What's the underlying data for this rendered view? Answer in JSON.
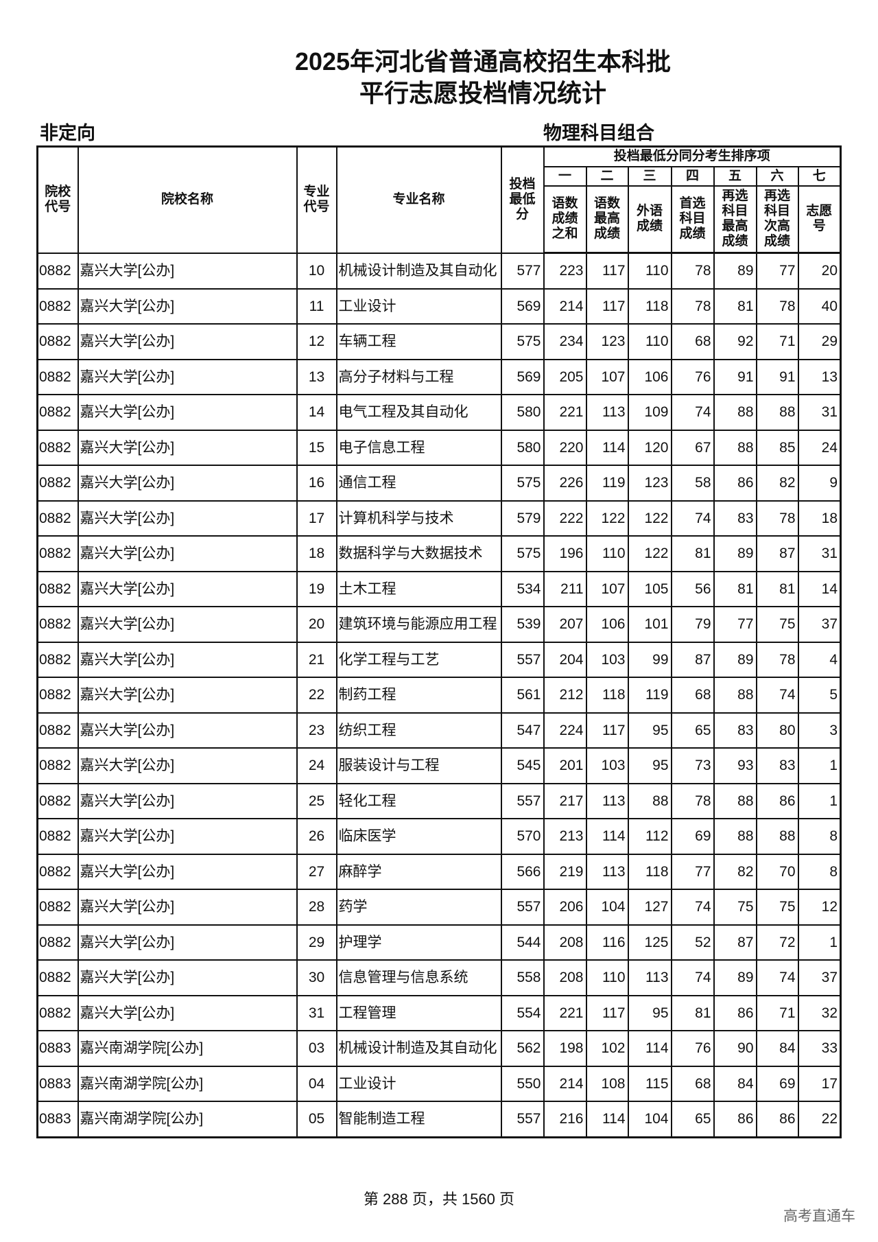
{
  "title_line1": "2025年河北省普通高校招生本科批",
  "title_line2": "平行志愿投档情况统计",
  "category_left": "非定向",
  "category_right": "物理科目组合",
  "headers": {
    "school_code": "院校代号",
    "school_name": "院校名称",
    "major_code": "专业代号",
    "major_name": "专业名称",
    "min_score": "投档最低分",
    "tiebreak_group": "投档最低分同分考生排序项",
    "ranks": [
      "一",
      "二",
      "三",
      "四",
      "五",
      "六",
      "七"
    ],
    "tiebreaks": [
      "语数成绩之和",
      "语数最高成绩",
      "外语成绩",
      "首选科目成绩",
      "再选科目最高成绩",
      "再选科目次高成绩",
      "志愿号"
    ]
  },
  "rows": [
    [
      "0882",
      "嘉兴大学[公办]",
      "10",
      "机械设计制造及其自动化",
      "577",
      "223",
      "117",
      "110",
      "78",
      "89",
      "77",
      "20"
    ],
    [
      "0882",
      "嘉兴大学[公办]",
      "11",
      "工业设计",
      "569",
      "214",
      "117",
      "118",
      "78",
      "81",
      "78",
      "40"
    ],
    [
      "0882",
      "嘉兴大学[公办]",
      "12",
      "车辆工程",
      "575",
      "234",
      "123",
      "110",
      "68",
      "92",
      "71",
      "29"
    ],
    [
      "0882",
      "嘉兴大学[公办]",
      "13",
      "高分子材料与工程",
      "569",
      "205",
      "107",
      "106",
      "76",
      "91",
      "91",
      "13"
    ],
    [
      "0882",
      "嘉兴大学[公办]",
      "14",
      "电气工程及其自动化",
      "580",
      "221",
      "113",
      "109",
      "74",
      "88",
      "88",
      "31"
    ],
    [
      "0882",
      "嘉兴大学[公办]",
      "15",
      "电子信息工程",
      "580",
      "220",
      "114",
      "120",
      "67",
      "88",
      "85",
      "24"
    ],
    [
      "0882",
      "嘉兴大学[公办]",
      "16",
      "通信工程",
      "575",
      "226",
      "119",
      "123",
      "58",
      "86",
      "82",
      "9"
    ],
    [
      "0882",
      "嘉兴大学[公办]",
      "17",
      "计算机科学与技术",
      "579",
      "222",
      "122",
      "122",
      "74",
      "83",
      "78",
      "18"
    ],
    [
      "0882",
      "嘉兴大学[公办]",
      "18",
      "数据科学与大数据技术",
      "575",
      "196",
      "110",
      "122",
      "81",
      "89",
      "87",
      "31"
    ],
    [
      "0882",
      "嘉兴大学[公办]",
      "19",
      "土木工程",
      "534",
      "211",
      "107",
      "105",
      "56",
      "81",
      "81",
      "14"
    ],
    [
      "0882",
      "嘉兴大学[公办]",
      "20",
      "建筑环境与能源应用工程",
      "539",
      "207",
      "106",
      "101",
      "79",
      "77",
      "75",
      "37"
    ],
    [
      "0882",
      "嘉兴大学[公办]",
      "21",
      "化学工程与工艺",
      "557",
      "204",
      "103",
      "99",
      "87",
      "89",
      "78",
      "4"
    ],
    [
      "0882",
      "嘉兴大学[公办]",
      "22",
      "制药工程",
      "561",
      "212",
      "118",
      "119",
      "68",
      "88",
      "74",
      "5"
    ],
    [
      "0882",
      "嘉兴大学[公办]",
      "23",
      "纺织工程",
      "547",
      "224",
      "117",
      "95",
      "65",
      "83",
      "80",
      "3"
    ],
    [
      "0882",
      "嘉兴大学[公办]",
      "24",
      "服装设计与工程",
      "545",
      "201",
      "103",
      "95",
      "73",
      "93",
      "83",
      "1"
    ],
    [
      "0882",
      "嘉兴大学[公办]",
      "25",
      "轻化工程",
      "557",
      "217",
      "113",
      "88",
      "78",
      "88",
      "86",
      "1"
    ],
    [
      "0882",
      "嘉兴大学[公办]",
      "26",
      "临床医学",
      "570",
      "213",
      "114",
      "112",
      "69",
      "88",
      "88",
      "8"
    ],
    [
      "0882",
      "嘉兴大学[公办]",
      "27",
      "麻醉学",
      "566",
      "219",
      "113",
      "118",
      "77",
      "82",
      "70",
      "8"
    ],
    [
      "0882",
      "嘉兴大学[公办]",
      "28",
      "药学",
      "557",
      "206",
      "104",
      "127",
      "74",
      "75",
      "75",
      "12"
    ],
    [
      "0882",
      "嘉兴大学[公办]",
      "29",
      "护理学",
      "544",
      "208",
      "116",
      "125",
      "52",
      "87",
      "72",
      "1"
    ],
    [
      "0882",
      "嘉兴大学[公办]",
      "30",
      "信息管理与信息系统",
      "558",
      "208",
      "110",
      "113",
      "74",
      "89",
      "74",
      "37"
    ],
    [
      "0882",
      "嘉兴大学[公办]",
      "31",
      "工程管理",
      "554",
      "221",
      "117",
      "95",
      "81",
      "86",
      "71",
      "32"
    ],
    [
      "0883",
      "嘉兴南湖学院[公办]",
      "03",
      "机械设计制造及其自动化",
      "562",
      "198",
      "102",
      "114",
      "76",
      "90",
      "84",
      "33"
    ],
    [
      "0883",
      "嘉兴南湖学院[公办]",
      "04",
      "工业设计",
      "550",
      "214",
      "108",
      "115",
      "68",
      "84",
      "69",
      "17"
    ],
    [
      "0883",
      "嘉兴南湖学院[公办]",
      "05",
      "智能制造工程",
      "557",
      "216",
      "114",
      "104",
      "65",
      "86",
      "86",
      "22"
    ]
  ],
  "footer": "第 288 页，共 1560 页",
  "watermark": "高考直通车"
}
